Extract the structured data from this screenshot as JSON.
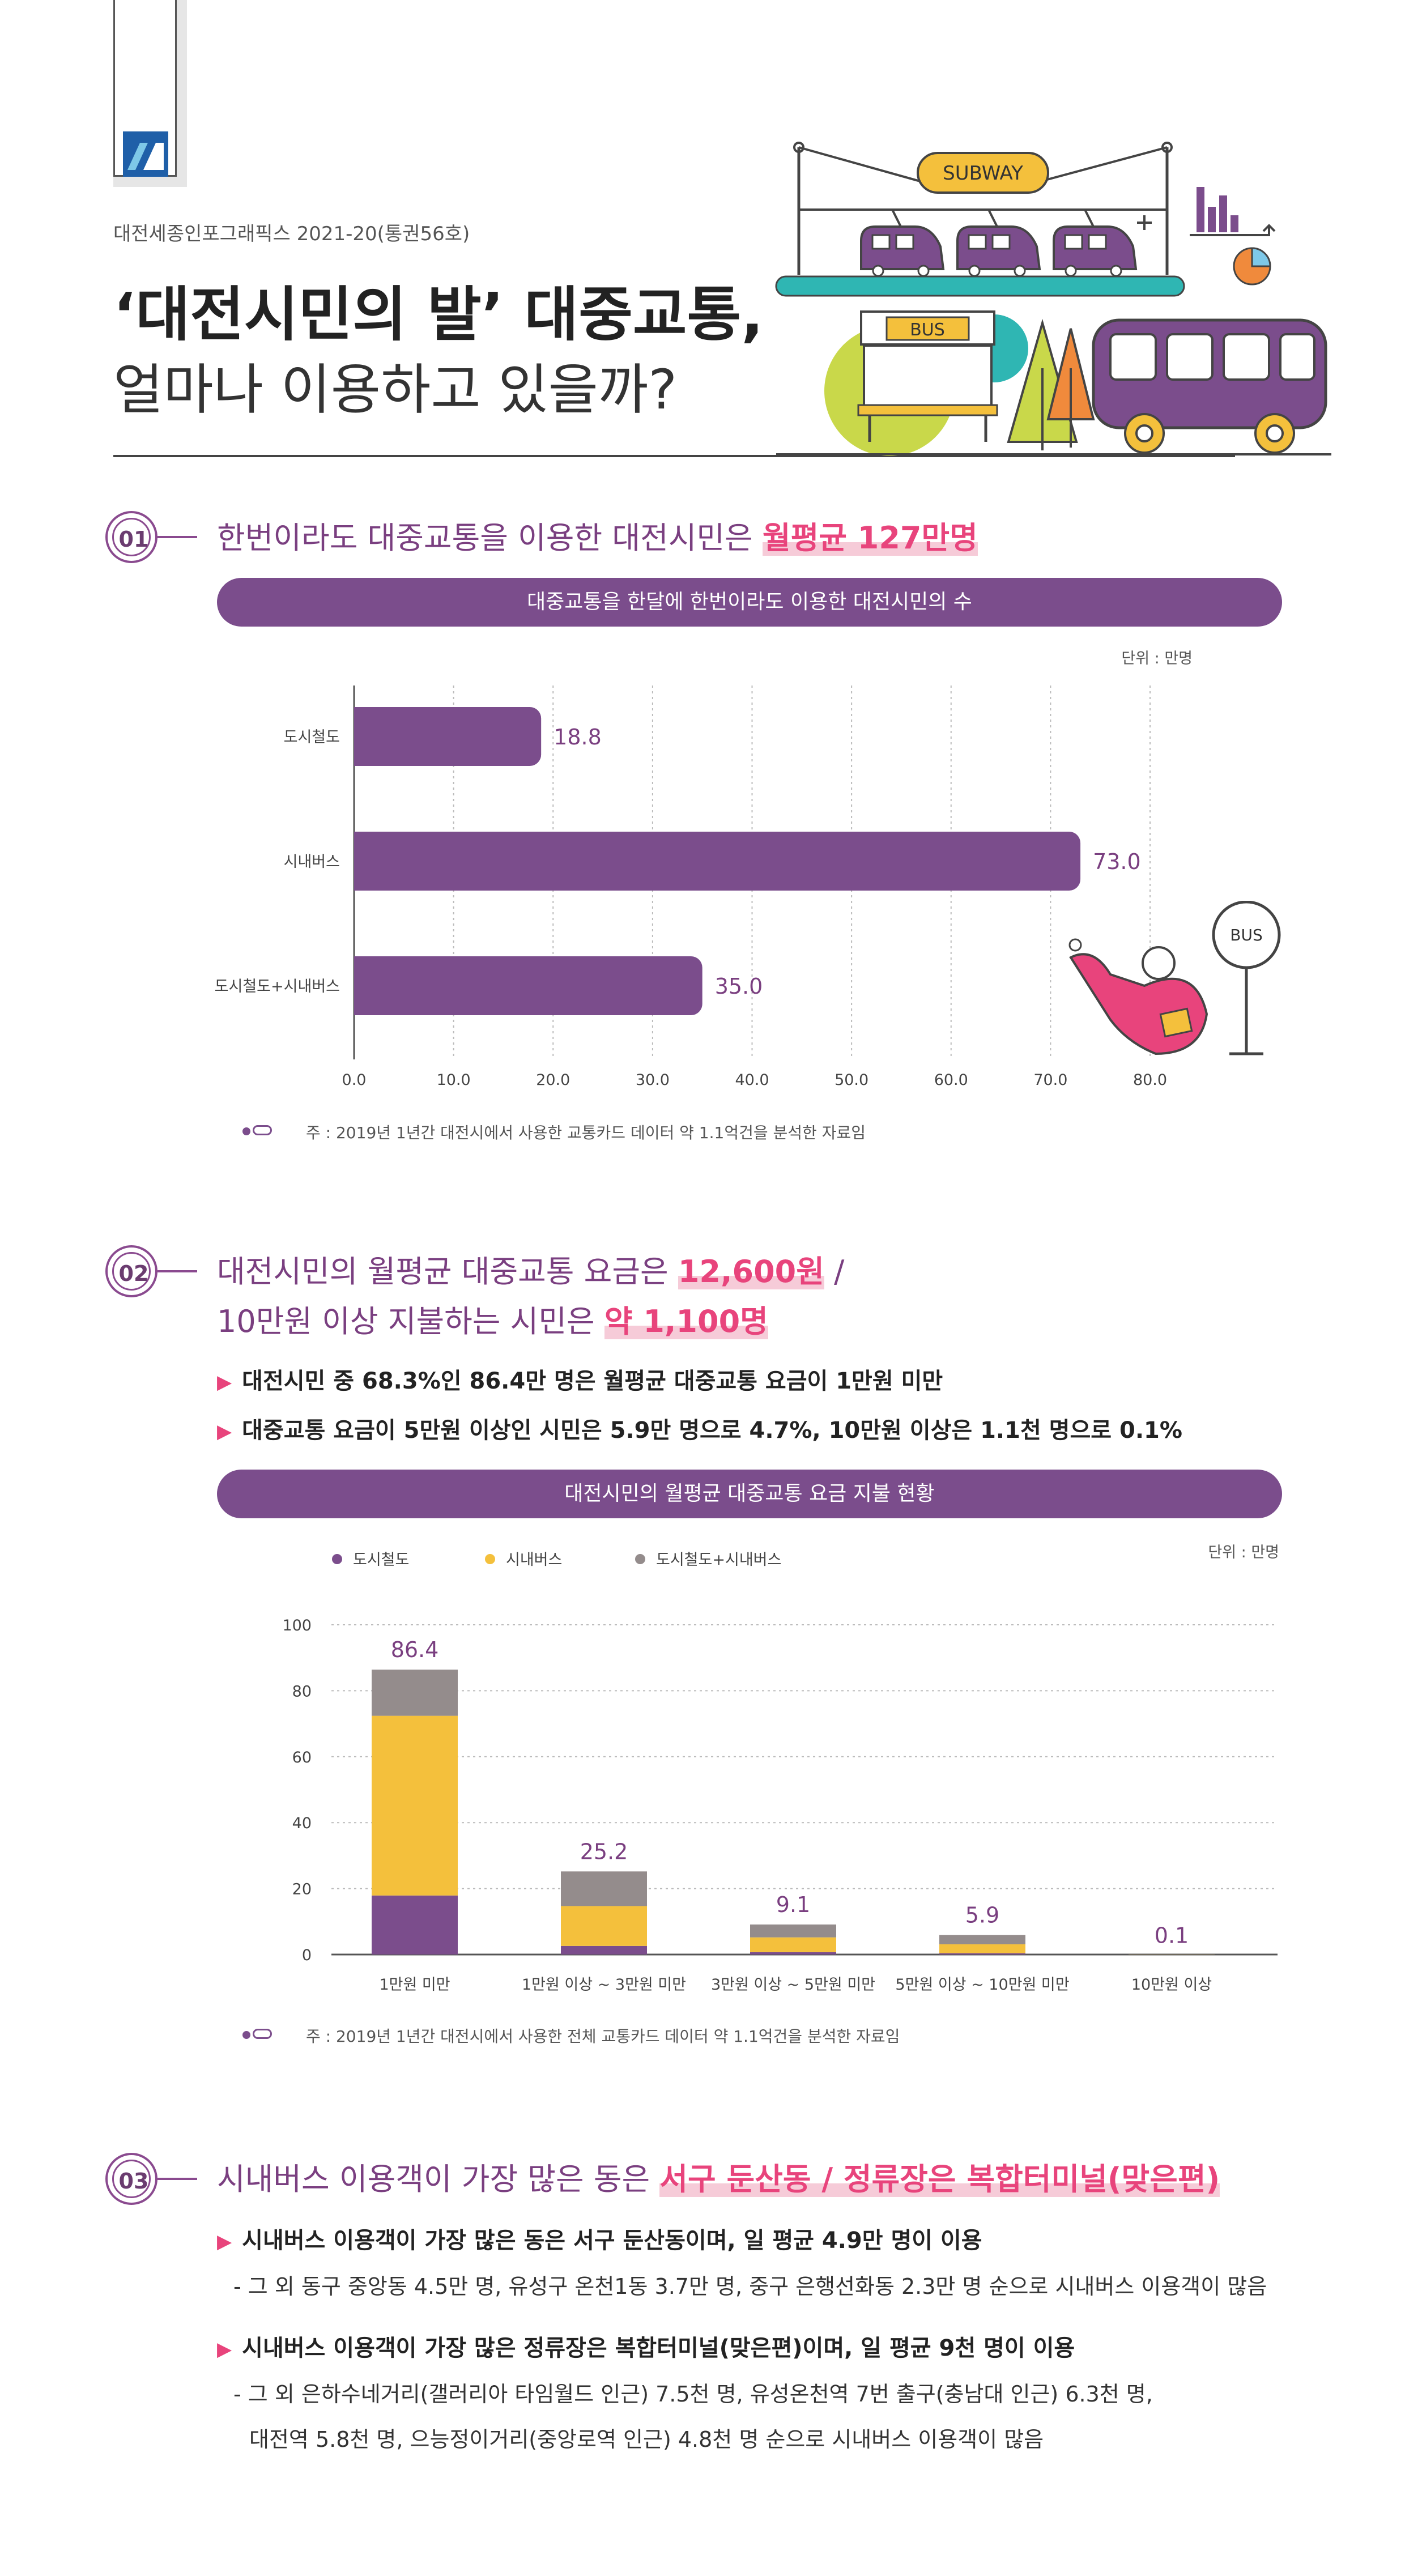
{
  "header": {
    "series": "대전세종인포그래픽스 2021-20(통권56호)",
    "title_line1": "‘대전시민의 발’ 대중교통,",
    "title_line2": "얼마나 이용하고 있을까?",
    "subway_sign": "SUBWAY",
    "bus_sign": "BUS",
    "bus_stop_sign": "BUS"
  },
  "colors": {
    "purple": "#7b4d8c",
    "yellow": "#f4c03c",
    "gray": "#948c8c",
    "pink": "#e8447c"
  },
  "section1": {
    "number": "01",
    "heading_pre": "한번이라도 대중교통을 이용한 대전시민은 ",
    "heading_highlight": "월평균 127만명",
    "pill": "대중교통을 한달에 한번이라도 이용한 대전시민의 수",
    "unit": "단위 : 만명",
    "note": "주 : 2019년 1년간 대전시에서 사용한 교통카드 데이터 약 1.1억건을 분석한 자료임"
  },
  "section2": {
    "number": "02",
    "heading_line1_pre": "대전시민의 월평균 대중교통 요금은 ",
    "heading_line1_highlight": "12,600원",
    "heading_line1_post": " /",
    "heading_line2_pre": "10만원 이상 지불하는 시민은 ",
    "heading_line2_highlight": "약 1,100명",
    "bullets": [
      "대전시민 중 68.3%인 86.4만 명은 월평균 대중교통 요금이 1만원 미만",
      "대중교통 요금이 5만원 이상인 시민은 5.9만 명으로 4.7%, 10만원 이상은 1.1천 명으로 0.1%"
    ],
    "pill": "대전시민의 월평균 대중교통 요금 지불 현황",
    "unit": "단위 : 만명",
    "note": "주 : 2019년 1년간 대전시에서 사용한 전체 교통카드 데이터 약 1.1억건을 분석한 자료임"
  },
  "section3": {
    "number": "03",
    "heading_pre": "시내버스 이용객이 가장 많은 동은 ",
    "heading_highlight": "서구 둔산동 / 정류장은 복합터미널(맞은편)",
    "bullet1": "시내버스 이용객이 가장 많은 동은 서구 둔산동이며, 일 평균 4.9만 명이 이용",
    "sub1": "- 그 외 동구 중앙동 4.5만 명, 유성구 온천1동 3.7만 명, 중구 은행선화동 2.3만 명 순으로 시내버스 이용객이 많음",
    "bullet2": "시내버스 이용객이 가장 많은 정류장은 복합터미널(맞은편)이며, 일 평균 9천 명이 이용",
    "sub2_line1": "- 그 외 은하수네거리(갤러리아 타임월드 인근) 7.5천 명, 유성온천역 7번 출구(충남대 인근) 6.3천 명,",
    "sub2_line2": "대전역 5.8천 명, 으능정이거리(중앙로역 인근) 4.8천 명 순으로 시내버스 이용객이 많음"
  },
  "chart_data": [
    {
      "type": "bar",
      "orientation": "horizontal",
      "title": "대중교통을 한달에 한번이라도 이용한 대전시민의 수",
      "unit": "단위 : 만명",
      "categories": [
        "도시철도",
        "시내버스",
        "도시철도+시내버스"
      ],
      "values": [
        18.8,
        73.0,
        35.0
      ],
      "value_labels": [
        "18.8",
        "73.0",
        "35.0"
      ],
      "xlim": [
        0,
        80
      ],
      "x_ticks": [
        "0.0",
        "10.0",
        "20.0",
        "30.0",
        "40.0",
        "50.0",
        "60.0",
        "70.0",
        "80.0"
      ],
      "grid": true
    },
    {
      "type": "bar",
      "stacked": true,
      "title": "대전시민의 월평균 대중교통 요금 지불 현황",
      "unit": "단위 : 만명",
      "categories": [
        "1만원 미만",
        "1만원 이상 ~ 3만원 미만",
        "3만원 이상 ~ 5만원 미만",
        "5만원 이상 ~ 10만원 미만",
        "10만원 이상"
      ],
      "series": [
        {
          "name": "도시철도",
          "values": [
            17.9,
            2.6,
            0.7,
            0.4,
            0.0
          ]
        },
        {
          "name": "시내버스",
          "values": [
            54.5,
            12.1,
            4.5,
            2.7,
            0.05
          ]
        },
        {
          "name": "도시철도+시내버스",
          "values": [
            14.0,
            10.5,
            3.9,
            2.8,
            0.05
          ]
        }
      ],
      "totals": [
        86.4,
        25.2,
        9.1,
        5.9,
        0.1
      ],
      "total_labels": [
        "86.4",
        "25.2",
        "9.1",
        "5.9",
        "0.1"
      ],
      "ylim": [
        0,
        100
      ],
      "y_ticks": [
        "0",
        "20",
        "40",
        "60",
        "80",
        "100"
      ],
      "legend": "top-left",
      "grid": true
    }
  ]
}
